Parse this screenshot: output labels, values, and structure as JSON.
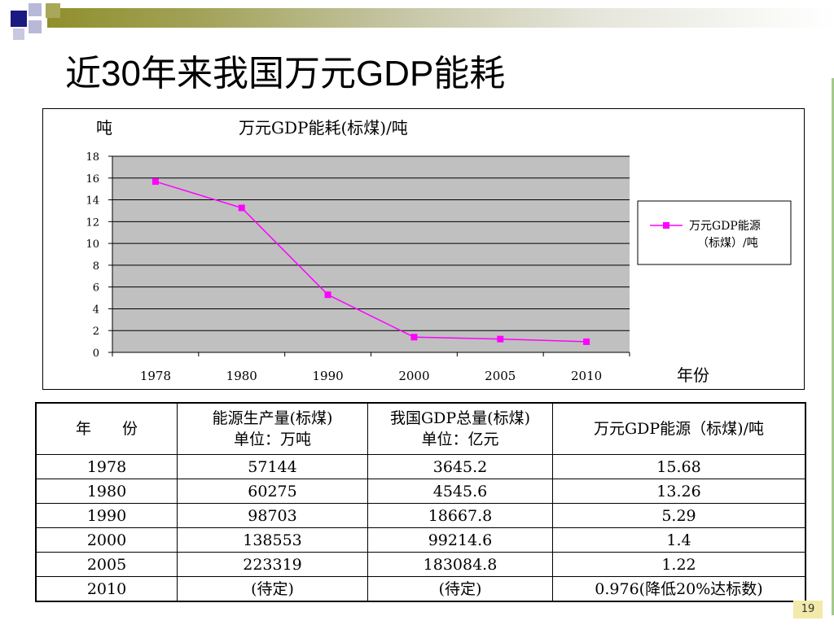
{
  "slide": {
    "title": "近30年来我国万元GDP能耗",
    "page_number": "19"
  },
  "colors": {
    "accent": "#8f8f2c",
    "series_line": "#ff00ff",
    "plot_bg": "#c0c0c0",
    "page_badge": "#f1eaaa"
  },
  "chart_data": {
    "type": "line",
    "title": "万元GDP能耗(标煤)/吨",
    "ylabel": "吨",
    "xlabel": "年份",
    "categories": [
      "1978",
      "1980",
      "1990",
      "2000",
      "2005",
      "2010"
    ],
    "series": [
      {
        "name": "万元GDP能源（标煤）/吨",
        "values": [
          15.68,
          13.26,
          5.29,
          1.4,
          1.22,
          0.976
        ]
      }
    ],
    "ylim": [
      0,
      18
    ],
    "yticks": [
      0,
      2,
      4,
      6,
      8,
      10,
      12,
      14,
      16,
      18
    ],
    "grid": true,
    "legend": "right",
    "legend_lines": [
      "万元GDP能源",
      "（标煤）/吨"
    ]
  },
  "table": {
    "headers": [
      {
        "line1": "年　　份",
        "line2": ""
      },
      {
        "line1": "能源生产量(标煤)",
        "line2": "单位：万吨"
      },
      {
        "line1": "我国GDP总量(标煤)",
        "line2": "单位：亿元"
      },
      {
        "line1": "万元GDP能源（标煤)/吨",
        "line2": ""
      }
    ],
    "rows": [
      [
        "1978",
        "57144",
        "3645.2",
        "15.68"
      ],
      [
        "1980",
        "60275",
        "4545.6",
        "13.26"
      ],
      [
        "1990",
        "98703",
        "18667.8",
        "5.29"
      ],
      [
        "2000",
        "138553",
        "99214.6",
        "1.4"
      ],
      [
        "2005",
        "223319",
        "183084.8",
        "1.22"
      ],
      [
        "2010",
        "(待定)",
        "(待定)",
        "0.976(降低20%达标数)"
      ]
    ]
  }
}
